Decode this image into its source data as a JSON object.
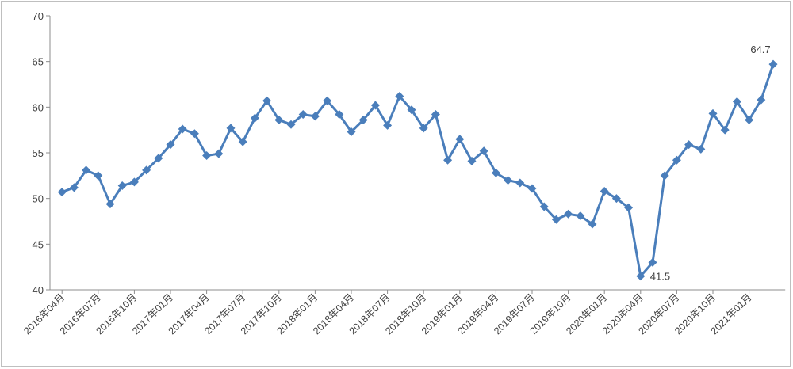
{
  "chart_data": {
    "type": "line",
    "title": "",
    "xlabel": "",
    "ylabel": "",
    "ylim": [
      40,
      70
    ],
    "yticks": [
      40,
      45,
      50,
      55,
      60,
      65,
      70
    ],
    "grid": false,
    "legend": "none",
    "color": "#4a7ebb",
    "x_tick_labels": [
      "2016年04月",
      "2016年07月",
      "2016年10月",
      "2017年01月",
      "2017年04月",
      "2017年07月",
      "2017年10月",
      "2018年01月",
      "2018年04月",
      "2018年07月",
      "2018年10月",
      "2019年01月",
      "2019年04月",
      "2019年07月",
      "2019年10月",
      "2020年01月",
      "2020年04月",
      "2020年07月",
      "2020年10月",
      "2021年01月"
    ],
    "series": [
      {
        "values": [
          50.7,
          51.2,
          53.1,
          52.5,
          49.4,
          51.4,
          51.8,
          53.1,
          54.4,
          55.9,
          57.6,
          57.1,
          54.7,
          54.9,
          57.7,
          56.2,
          58.8,
          60.7,
          58.6,
          58.1,
          59.2,
          59.0,
          60.7,
          59.2,
          57.3,
          58.6,
          60.2,
          58.0,
          61.2,
          59.7,
          57.7,
          59.2,
          54.2,
          56.5,
          54.1,
          55.2,
          52.8,
          52.0,
          51.7,
          51.1,
          49.1,
          47.7,
          48.3,
          48.1,
          47.2,
          50.8,
          50.0,
          49.0,
          41.5,
          43.0,
          52.5,
          54.2,
          55.9,
          55.4,
          59.3,
          57.5,
          60.6,
          58.6,
          60.8,
          64.7
        ]
      }
    ],
    "annotations": [
      {
        "index": 48,
        "text": "41.5"
      },
      {
        "index": 59,
        "text": "64.7"
      }
    ]
  }
}
